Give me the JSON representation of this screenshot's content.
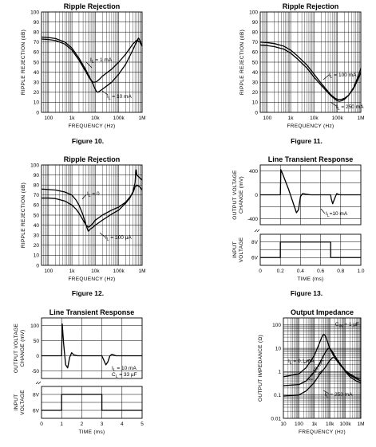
{
  "figures": [
    {
      "id": "fig10",
      "caption": "Figure 10."
    },
    {
      "id": "fig11",
      "caption": "Figure 11."
    },
    {
      "id": "fig12",
      "caption": "Figure 12."
    },
    {
      "id": "fig13",
      "caption": "Figure 13."
    }
  ],
  "chart_data": [
    {
      "type": "line",
      "title": "Ripple Rejection",
      "xlabel": "FREQUENCY (Hz)",
      "ylabel": "RIPPLE REJECTION (dB)",
      "xscale": "log",
      "xlim": [
        50,
        1000000
      ],
      "ylim": [
        0,
        100
      ],
      "x_tick_labels": [
        "100",
        "1k",
        "10k",
        "100k",
        "1M"
      ],
      "y_tick_labels": [
        "0",
        "10",
        "20",
        "30",
        "40",
        "50",
        "60",
        "70",
        "80",
        "90",
        "100"
      ],
      "grid": true,
      "series": [
        {
          "name": "IL = 1 mA",
          "label": "I",
          "sub": "L",
          "value": " = 1 mA",
          "x": [
            50,
            100,
            200,
            500,
            1000,
            2000,
            4000,
            6000,
            8000,
            10000,
            12000,
            15000,
            20000,
            50000,
            100000,
            200000,
            400000,
            600000,
            800000,
            1000000
          ],
          "y": [
            73,
            72.5,
            71.5,
            68,
            62,
            52,
            40,
            33,
            30,
            30,
            31,
            33,
            36,
            43,
            50,
            58,
            68,
            72,
            70,
            66
          ]
        },
        {
          "name": "IL = 10 mA",
          "label": "I",
          "sub": "L",
          "value": " = 10 mA",
          "x": [
            50,
            100,
            200,
            500,
            1000,
            2000,
            4000,
            6000,
            8000,
            10000,
            11000,
            13000,
            15000,
            20000,
            50000,
            100000,
            200000,
            400000,
            600000,
            700000,
            800000,
            1000000
          ],
          "y": [
            75,
            74.5,
            73.5,
            70,
            64,
            54,
            42,
            34,
            28,
            23,
            21,
            20,
            21,
            23,
            30,
            38,
            48,
            62,
            71,
            74,
            72,
            66
          ]
        }
      ]
    },
    {
      "type": "line",
      "title": "Ripple Rejection",
      "xlabel": "FREQUENCY (Hz)",
      "ylabel": "RIPPLE REJECTION (dB)",
      "xscale": "log",
      "xlim": [
        50,
        1000000
      ],
      "ylim": [
        0,
        100
      ],
      "x_tick_labels": [
        "100",
        "1k",
        "10k",
        "100k",
        "1M"
      ],
      "y_tick_labels": [
        "0",
        "10",
        "20",
        "30",
        "40",
        "50",
        "60",
        "70",
        "80",
        "90",
        "100"
      ],
      "grid": true,
      "series": [
        {
          "name": "IL = 100 mA",
          "label": "I",
          "sub": "L",
          "value": " = 100 mA",
          "x": [
            50,
            100,
            200,
            500,
            1000,
            2000,
            5000,
            10000,
            20000,
            50000,
            80000,
            100000,
            150000,
            200000,
            300000,
            500000,
            800000,
            1000000
          ],
          "y": [
            70,
            69.5,
            68.5,
            66,
            62,
            56,
            47,
            38,
            29,
            18,
            14,
            13,
            13,
            14,
            17,
            24,
            34,
            40
          ]
        },
        {
          "name": "IL = 250 mA",
          "label": "I",
          "sub": "L",
          "value": " = 250 mA",
          "x": [
            50,
            100,
            200,
            500,
            1000,
            2000,
            5000,
            10000,
            20000,
            50000,
            80000,
            100000,
            120000,
            150000,
            200000,
            300000,
            500000,
            800000,
            1000000
          ],
          "y": [
            67,
            66.5,
            65.5,
            63,
            59,
            53,
            44,
            35,
            27,
            17,
            13,
            11.5,
            11,
            11.5,
            13,
            17,
            25,
            37,
            44
          ]
        }
      ]
    },
    {
      "type": "line",
      "title": "Ripple Rejection",
      "xlabel": "FREQUENCY (Hz)",
      "ylabel": "RIPPLE REJECTION (dB)",
      "xscale": "log",
      "xlim": [
        50,
        1000000
      ],
      "ylim": [
        0,
        100
      ],
      "x_tick_labels": [
        "100",
        "1k",
        "10k",
        "100k",
        "1M"
      ],
      "y_tick_labels": [
        "0",
        "10",
        "20",
        "30",
        "40",
        "50",
        "60",
        "70",
        "80",
        "90",
        "100"
      ],
      "grid": true,
      "series": [
        {
          "name": "IL = 0",
          "label": "I",
          "sub": "L",
          "value": " = 0",
          "x": [
            50,
            100,
            200,
            500,
            1000,
            1500,
            2000,
            3000,
            4000,
            5000,
            6000,
            8000,
            10000,
            20000,
            50000,
            100000,
            200000,
            300000,
            400000,
            500000,
            600000,
            800000,
            1000000
          ],
          "y": [
            67,
            67,
            66.5,
            64,
            60,
            56,
            52,
            45,
            40,
            38,
            39,
            42,
            45,
            50,
            55,
            58,
            63,
            68,
            72,
            78,
            80,
            78,
            75
          ]
        },
        {
          "name": "IL = 100 µA",
          "label": "I",
          "sub": "L",
          "value": " = 100 µA",
          "x": [
            50,
            100,
            200,
            500,
            1000,
            1500,
            2000,
            3000,
            4000,
            5000,
            6000,
            8000,
            10000,
            20000,
            50000,
            100000,
            200000,
            300000,
            400000,
            500000,
            550000,
            600000,
            800000,
            1000000
          ],
          "y": [
            76,
            75.5,
            75,
            73,
            70,
            65,
            60,
            50,
            40,
            34,
            36,
            38,
            40,
            45,
            51,
            55,
            62,
            67,
            73,
            82,
            95,
            90,
            87,
            85
          ]
        }
      ]
    },
    {
      "type": "line",
      "title": "Line Transient Response",
      "xlabel": "TIME (ms)",
      "ylabel_upper": "OUTPUT VOLTAGE CHANGE (mV)",
      "ylabel_lower": "INPUT VOLTAGE",
      "xlim": [
        0,
        1.0
      ],
      "ylim_upper": [
        -500,
        500
      ],
      "x_tick_labels": [
        "0",
        "0.2",
        "0.4",
        "0.6",
        "0.8",
        "1.0"
      ],
      "y_tick_labels_upper": [
        "400",
        "0",
        "-400"
      ],
      "y_tick_labels_lower": [
        "8V",
        "6V"
      ],
      "grid": true,
      "annotations": [
        {
          "label": "I",
          "sub": "L",
          "value": "=10 mA"
        }
      ],
      "series": [
        {
          "name": "output",
          "x": [
            0,
            0.2,
            0.205,
            0.22,
            0.28,
            0.33,
            0.36,
            0.38,
            0.4,
            0.42,
            0.5,
            0.7,
            0.705,
            0.72,
            0.74,
            0.76,
            0.78,
            0.8,
            1.0
          ],
          "y": [
            0,
            0,
            420,
            360,
            100,
            -150,
            -300,
            -250,
            -30,
            20,
            0,
            0,
            -60,
            -150,
            -60,
            20,
            5,
            0,
            0
          ]
        },
        {
          "name": "input",
          "x": [
            0,
            0.2,
            0.2,
            0.7,
            0.7,
            1.0
          ],
          "y": [
            6,
            6,
            8,
            8,
            6,
            6
          ]
        }
      ]
    },
    {
      "type": "line",
      "title": "Line Transient Response",
      "xlabel": "TIME (ms)",
      "ylabel_upper": "OUTPUT VOLTAGE CHANGE (mV)",
      "ylabel_lower": "INPUT VOLTAGE",
      "xlim": [
        0,
        5
      ],
      "ylim_upper": [
        -75,
        125
      ],
      "x_tick_labels": [
        "0",
        "1",
        "2",
        "3",
        "4",
        "5"
      ],
      "y_tick_labels_upper": [
        "100",
        "50",
        "0",
        "-50"
      ],
      "y_tick_labels_lower": [
        "8V",
        "6V"
      ],
      "grid": true,
      "annotations": [
        {
          "label": "I",
          "sub": "L",
          "value": " = 10 mA"
        },
        {
          "label": "C",
          "sub": "L",
          "value": " = 33 µF"
        }
      ],
      "series": [
        {
          "name": "output",
          "x": [
            0,
            1.0,
            1.03,
            1.1,
            1.2,
            1.3,
            1.4,
            1.5,
            1.6,
            1.8,
            3.0,
            3.1,
            3.2,
            3.3,
            3.4,
            3.5,
            3.7,
            5.0
          ],
          "y": [
            0,
            0,
            105,
            40,
            -30,
            -40,
            -5,
            10,
            3,
            0,
            0,
            -15,
            -30,
            -20,
            0,
            5,
            0,
            0
          ]
        },
        {
          "name": "input",
          "x": [
            0,
            1.0,
            1.0,
            3.0,
            3.0,
            5.0
          ],
          "y": [
            6,
            6,
            8,
            8,
            6,
            6
          ]
        }
      ]
    },
    {
      "type": "line",
      "title": "Output Impedance",
      "xlabel": "FREQUENCY (Hz)",
      "ylabel": "OUTPUT IMPEDANCE (Ω)",
      "xscale": "log",
      "yscale": "log",
      "xlim": [
        10,
        1000000
      ],
      "ylim": [
        0.01,
        200
      ],
      "x_tick_labels": [
        "10",
        "100",
        "1k",
        "10k",
        "100k",
        "1M"
      ],
      "y_tick_labels": [
        "0.01",
        "0.1",
        "1",
        "10",
        "100"
      ],
      "grid": true,
      "annotations": [
        {
          "label": "C",
          "sub": "IN",
          "value": " = 1 µF"
        }
      ],
      "series": [
        {
          "name": "IL = 0.1 mA",
          "label": "I",
          "sub": "L",
          "value": " = 0.1 mA",
          "x": [
            10,
            100,
            300,
            1000,
            2000,
            3000,
            4000,
            5000,
            7000,
            10000,
            20000,
            50000,
            100000,
            200000,
            500000,
            1000000
          ],
          "y": [
            0.6,
            0.8,
            1.5,
            5,
            15,
            30,
            40,
            35,
            20,
            10,
            4,
            1.8,
            1.1,
            0.8,
            0.55,
            0.5
          ]
        },
        {
          "name": "IL = 10 mA",
          "label": "I",
          "sub": "L",
          "value": " = 10 mA",
          "x": [
            10,
            100,
            300,
            1000,
            2000,
            4000,
            6000,
            8000,
            10000,
            15000,
            20000,
            50000,
            100000,
            200000,
            500000,
            1000000
          ],
          "y": [
            0.25,
            0.28,
            0.4,
            1,
            2,
            5,
            8,
            10,
            10,
            7,
            5,
            2,
            1.1,
            0.7,
            0.5,
            0.4
          ]
        },
        {
          "name": "IL = 250 mA",
          "label": "I",
          "sub": "L",
          "value": " = 250 mA",
          "x": [
            10,
            100,
            300,
            1000,
            2000,
            5000,
            10000,
            15000,
            20000,
            30000,
            50000,
            100000,
            200000,
            500000,
            1000000
          ],
          "y": [
            0.09,
            0.1,
            0.15,
            0.35,
            0.7,
            1.5,
            3,
            4,
            4,
            3,
            2,
            1,
            0.6,
            0.4,
            0.33
          ]
        }
      ]
    }
  ]
}
